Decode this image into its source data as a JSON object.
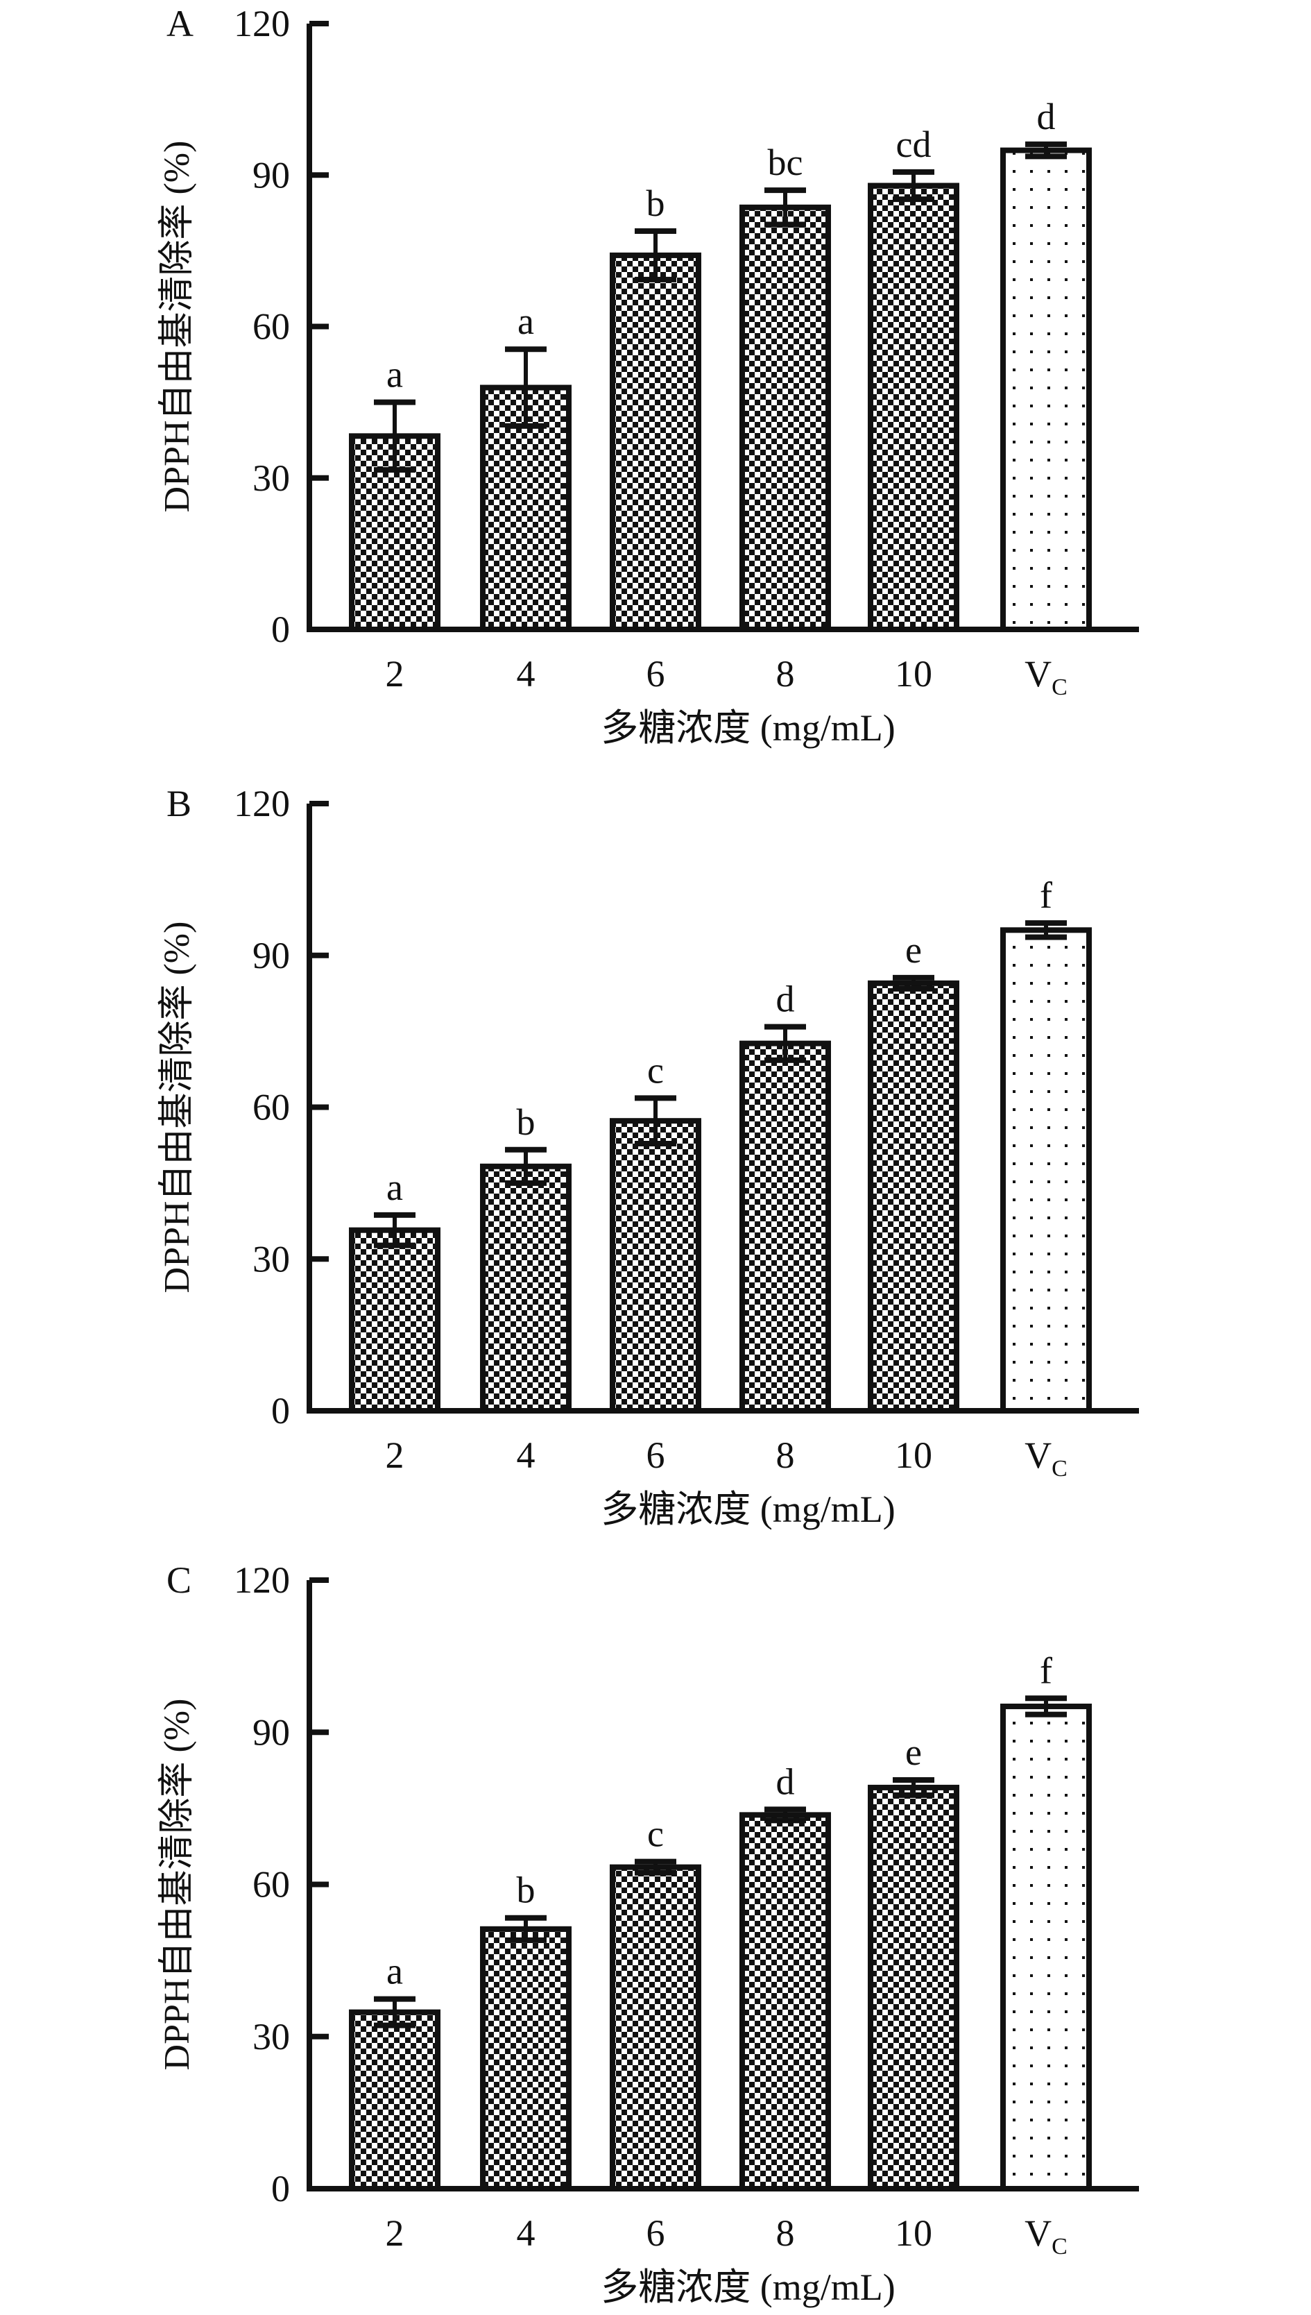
{
  "chart_data": [
    {
      "type": "bar",
      "panel": "A",
      "categories": [
        "2",
        "4",
        "6",
        "8",
        "10",
        "V_C"
      ],
      "values": [
        38.3,
        47.9,
        74.1,
        83.6,
        87.9,
        94.9
      ],
      "errors": [
        6.7,
        7.6,
        4.8,
        3.4,
        2.7,
        1.2
      ],
      "significance": [
        "a",
        "a",
        "b",
        "bc",
        "cd",
        "d"
      ],
      "xlabel": "多糖浓度 (mg/mL)",
      "ylabel": "DPPH自由基清除率 (%)",
      "ylim": [
        0,
        120
      ],
      "yticks": [
        "0",
        "30",
        "60",
        "90",
        "120"
      ],
      "grid": false
    },
    {
      "type": "bar",
      "panel": "B",
      "categories": [
        "2",
        "4",
        "6",
        "8",
        "10",
        "V_C"
      ],
      "values": [
        35.7,
        48.3,
        57.3,
        72.6,
        84.5,
        95.0
      ],
      "errors": [
        3.0,
        3.3,
        4.5,
        3.3,
        1.1,
        1.4
      ],
      "significance": [
        "a",
        "b",
        "c",
        "d",
        "e",
        "f"
      ],
      "xlabel": "多糖浓度 (mg/mL)",
      "ylabel": "DPPH自由基清除率 (%)",
      "ylim": [
        0,
        120
      ],
      "yticks": [
        "0",
        "30",
        "60",
        "90",
        "120"
      ],
      "grid": false
    },
    {
      "type": "bar",
      "panel": "C",
      "categories": [
        "2",
        "4",
        "6",
        "8",
        "10",
        "V_C"
      ],
      "values": [
        34.8,
        51.2,
        63.4,
        73.7,
        79.1,
        95.1
      ],
      "errors": [
        2.6,
        2.2,
        1.1,
        1.1,
        1.5,
        1.6
      ],
      "significance": [
        "a",
        "b",
        "c",
        "d",
        "e",
        "f"
      ],
      "xlabel": "多糖浓度 (mg/mL)",
      "ylabel": "DPPH自由基清除率 (%)",
      "ylim": [
        0,
        120
      ],
      "yticks": [
        "0",
        "30",
        "60",
        "90",
        "120"
      ],
      "grid": false
    }
  ],
  "colors": {
    "ink": "#111111",
    "background": "#ffffff"
  }
}
